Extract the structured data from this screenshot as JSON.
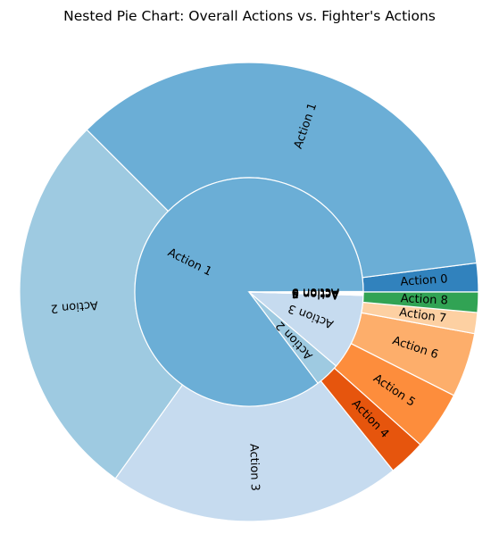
{
  "chart_data": {
    "type": "pie",
    "subtype": "nested",
    "title": "Nested Pie Chart: Overall Actions vs. Fighter's Actions",
    "start_angle_deg": 0,
    "direction": "counterclockwise",
    "outer_ring": {
      "slices": [
        {
          "label": "Action 0",
          "value": 2.05,
          "color": "#3182bd"
        },
        {
          "label": "Action 1",
          "value": 36.0,
          "color": "#6baed6"
        },
        {
          "label": "Action 2",
          "value": 28.0,
          "color": "#9ecae1"
        },
        {
          "label": "Action 3",
          "value": 21.0,
          "color": "#c6dbef"
        },
        {
          "label": "Action 4",
          "value": 2.65,
          "color": "#e6550d"
        },
        {
          "label": "Action 5",
          "value": 4.2,
          "color": "#fd8d3c"
        },
        {
          "label": "Action 6",
          "value": 4.6,
          "color": "#fdae6b"
        },
        {
          "label": "Action 7",
          "value": 1.5,
          "color": "#fdd0a2"
        },
        {
          "label": "Action 8",
          "value": 1.45,
          "color": "#31a354"
        }
      ]
    },
    "inner_ring": {
      "slices": [
        {
          "label": "Action 0",
          "value": 0.08,
          "color": "#3182bd"
        },
        {
          "label": "Action 1",
          "value": 85.0,
          "color": "#6baed6"
        },
        {
          "label": "Action 2",
          "value": 3.5,
          "color": "#9ecae1"
        },
        {
          "label": "Action 3",
          "value": 10.7,
          "color": "#c6dbef"
        },
        {
          "label": "Action 4",
          "value": 0.08,
          "color": "#e6550d"
        },
        {
          "label": "Action 5",
          "value": 0.08,
          "color": "#fd8d3c"
        },
        {
          "label": "Action 6",
          "value": 0.08,
          "color": "#fdae6b"
        },
        {
          "label": "Action 7",
          "value": 0.08,
          "color": "#fdd0a2"
        },
        {
          "label": "Action 8",
          "value": 0.08,
          "color": "#31a354"
        },
        {
          "label": "Action 9",
          "value": 0.08,
          "color": "#74c476"
        }
      ]
    },
    "edge_color": "#ffffff",
    "legend": "none",
    "grid": false
  }
}
